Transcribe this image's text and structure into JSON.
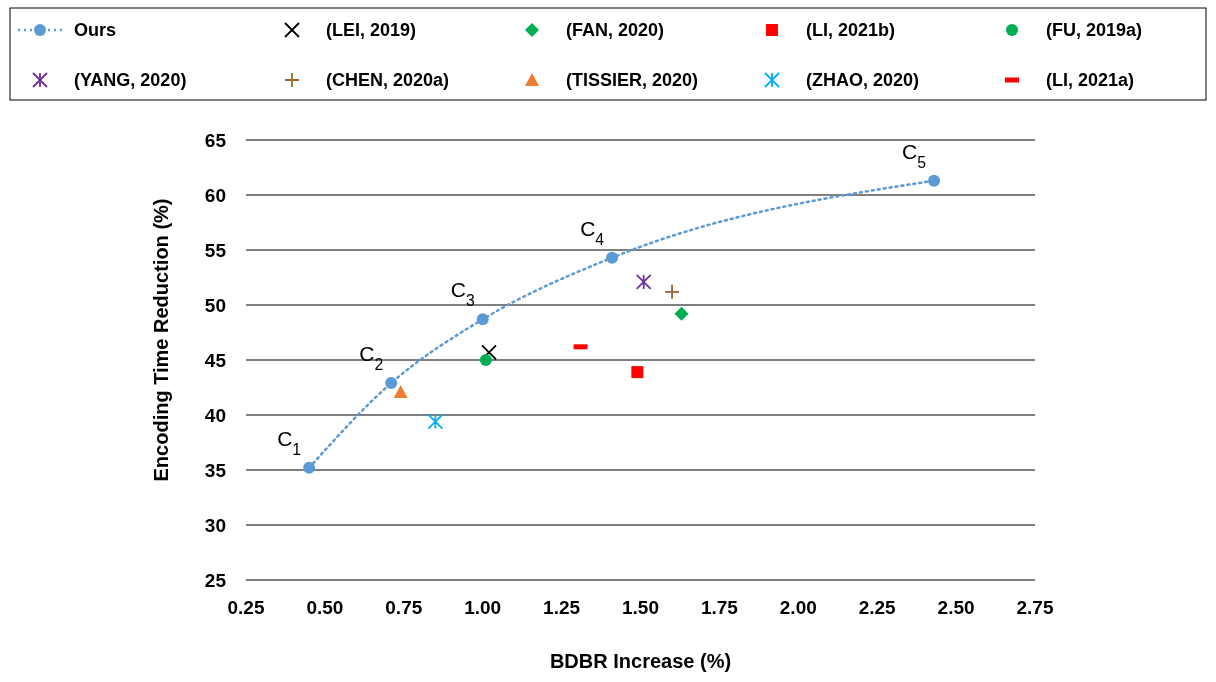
{
  "chart_data": {
    "type": "scatter",
    "xlabel": "BDBR Increase (%)",
    "ylabel": "Encoding Time Reduction (%)",
    "xlim": [
      0.25,
      2.75
    ],
    "xticks": [
      {
        "value": 0.25,
        "label": "0.25"
      },
      {
        "value": 0.5,
        "label": "0.50"
      },
      {
        "value": 0.75,
        "label": "0.75"
      },
      {
        "value": 1,
        "label": "1.00"
      },
      {
        "value": 1.25,
        "label": "1.25"
      },
      {
        "value": 1.5,
        "label": "1.50"
      },
      {
        "value": 1.75,
        "label": "1.75"
      },
      {
        "value": 2,
        "label": "2.00"
      },
      {
        "value": 2.25,
        "label": "2.25"
      },
      {
        "value": 2.5,
        "label": "2.50"
      },
      {
        "value": 2.75,
        "label": "2.75"
      }
    ],
    "ylim": [
      25,
      65
    ],
    "yticks": [
      25,
      30,
      35,
      40,
      45,
      50,
      55,
      60,
      65
    ],
    "grid": "y",
    "legend": "top",
    "series": [
      {
        "name": "Ours",
        "type": "line",
        "marker": "circle",
        "line_style": "dotted",
        "color": "#5b9bd5",
        "x": [
          0.45,
          0.71,
          1.0,
          1.41,
          2.43
        ],
        "values": [
          35.2,
          42.9,
          48.7,
          54.3,
          61.3
        ]
      },
      {
        "name": "(LEI, 2019)",
        "marker": "x",
        "color": "#000000",
        "x": [
          1.02
        ],
        "values": [
          45.7
        ]
      },
      {
        "name": "(FAN, 2020)",
        "marker": "diamond",
        "color": "#00b050",
        "x": [
          1.63
        ],
        "values": [
          49.2
        ]
      },
      {
        "name": "(LI, 2021b)",
        "marker": "square",
        "color": "#ff0000",
        "x": [
          1.49
        ],
        "values": [
          43.9
        ]
      },
      {
        "name": "(FU, 2019a)",
        "marker": "circle",
        "color": "#00b050",
        "x": [
          1.01
        ],
        "values": [
          45.0
        ]
      },
      {
        "name": "(YANG, 2020)",
        "marker": "cross",
        "color": "#7030a0",
        "x": [
          1.51
        ],
        "values": [
          52.1
        ]
      },
      {
        "name": "(CHEN, 2020a)",
        "marker": "plus",
        "color": "#996633",
        "x": [
          1.6
        ],
        "values": [
          51.2
        ]
      },
      {
        "name": "(TISSIER, 2020)",
        "marker": "triangle",
        "color": "#ed7d31",
        "x": [
          0.74
        ],
        "values": [
          42.1
        ]
      },
      {
        "name": "(ZHAO, 2020)",
        "marker": "cross",
        "color": "#00b0f0",
        "x": [
          0.85
        ],
        "values": [
          39.4
        ]
      },
      {
        "name": "(LI, 2021a)",
        "color": "#ff0000",
        "x": [
          1.31
        ],
        "values": [
          46.2
        ]
      }
    ],
    "annotations": [
      {
        "text": "C$_{1}$",
        "x": 0.45,
        "y": 35.2
      },
      {
        "text": "C$_{2}$",
        "x": 0.71,
        "y": 42.9
      },
      {
        "text": "C$_{3}$",
        "x": 1.0,
        "y": 48.7
      },
      {
        "text": "C$_{4}$",
        "x": 1.41,
        "y": 54.3
      },
      {
        "text": "C$_{5}$",
        "x": 2.43,
        "y": 61.3
      }
    ]
  }
}
